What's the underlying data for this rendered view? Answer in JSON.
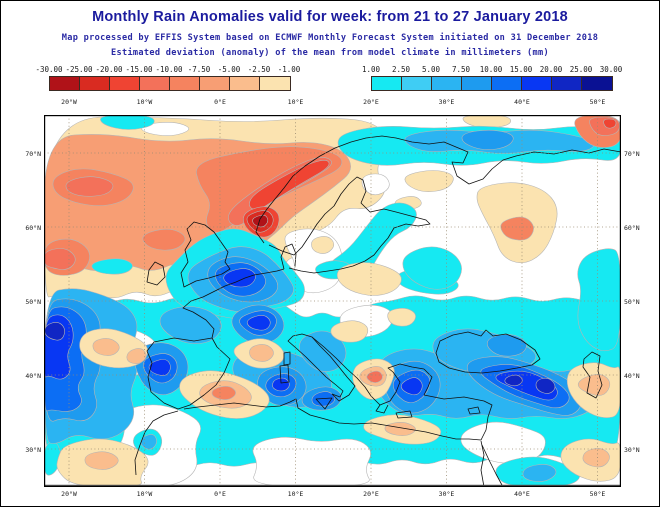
{
  "title": "Monthly Rain Anomalies valid for week: from 21 to 27 January 2018",
  "subtitle_processing": "Map processed by EFFIS System based on ECMWF Monthly Forecast System initiated on 31 December 2018",
  "subtitle_description": "Estimated deviation (anomaly) of the mean from model climate in millimeters (mm)",
  "colors": {
    "title_text": "#1b1b9e",
    "subtitle_text": "#2a2aa4",
    "axis_text": "#1a1a1a",
    "land_outline": "#111111",
    "grid_line": "#9a8b72",
    "contour_line": "#b5b5b5"
  },
  "legend": {
    "negative": {
      "labels": [
        "-30.00",
        "-25.00",
        "-20.00",
        "-15.00",
        "-10.00",
        "-7.50",
        "-5.00",
        "-2.50",
        "-1.00"
      ],
      "cell_colors": [
        "#b01218",
        "#d92b21",
        "#ef4433",
        "#f3715a",
        "#f5835f",
        "#f79e74",
        "#fabd8d",
        "#fbe3b0"
      ]
    },
    "positive": {
      "labels": [
        "1.00",
        "2.50",
        "5.00",
        "7.50",
        "10.00",
        "15.00",
        "20.00",
        "25.00",
        "30.00"
      ],
      "cell_colors": [
        "#16e9f2",
        "#3fcdf4",
        "#2bb4f2",
        "#1e9bef",
        "#0c6ef4",
        "#0837f3",
        "#1026c4",
        "#0a1193"
      ]
    }
  },
  "map_axes": {
    "longitude_labels": [
      "20°W",
      "10°W",
      "0°E",
      "10°E",
      "20°E",
      "30°E",
      "40°E",
      "50°E"
    ],
    "latitude_labels": [
      "70°N",
      "60°N",
      "50°N",
      "40°N",
      "30°N"
    ]
  }
}
